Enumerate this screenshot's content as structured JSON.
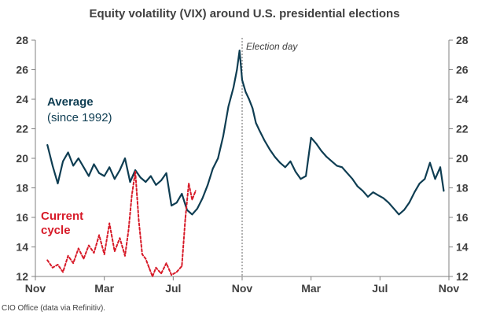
{
  "chart_data": {
    "type": "line",
    "title": "Equity volatility (VIX) around U.S. presidential elections",
    "xlabel": "",
    "ylabel": "",
    "x_tick_labels": [
      "Nov",
      "Mar",
      "Jul",
      "Nov",
      "Mar",
      "Jul",
      "Nov"
    ],
    "x_tick_months": [
      0,
      4,
      8,
      12,
      16,
      20,
      24
    ],
    "xlim": [
      0,
      24
    ],
    "ylim": [
      12,
      28
    ],
    "y_ticks": [
      12,
      14,
      16,
      18,
      20,
      22,
      24,
      26,
      28
    ],
    "y_axis_left": true,
    "y_axis_right": true,
    "annotation": {
      "label": "Election day",
      "x_month": 12
    },
    "series": [
      {
        "name": "Average (since 1992)",
        "label_main": "Average",
        "label_sub": "(since 1992)",
        "color": "#0e3d52",
        "style": "solid",
        "x": [
          0.7,
          1.0,
          1.3,
          1.6,
          1.9,
          2.2,
          2.5,
          2.8,
          3.1,
          3.4,
          3.7,
          4.0,
          4.3,
          4.6,
          4.9,
          5.2,
          5.5,
          5.8,
          6.1,
          6.4,
          6.7,
          7.0,
          7.3,
          7.6,
          7.9,
          8.2,
          8.5,
          8.8,
          9.1,
          9.4,
          9.7,
          10.0,
          10.3,
          10.6,
          10.9,
          11.2,
          11.5,
          11.7,
          11.85,
          12.0,
          12.2,
          12.4,
          12.6,
          12.8,
          13.0,
          13.3,
          13.6,
          13.9,
          14.2,
          14.5,
          14.8,
          15.1,
          15.4,
          15.7,
          16.0,
          16.3,
          16.6,
          16.9,
          17.2,
          17.5,
          17.8,
          18.1,
          18.4,
          18.7,
          19.0,
          19.3,
          19.6,
          19.9,
          20.2,
          20.5,
          20.8,
          21.1,
          21.4,
          21.7,
          22.0,
          22.3,
          22.6,
          22.9,
          23.2,
          23.5,
          23.7
        ],
        "y": [
          20.9,
          19.5,
          18.3,
          19.8,
          20.4,
          19.5,
          20.0,
          19.4,
          18.8,
          19.6,
          19.0,
          18.8,
          19.4,
          18.6,
          19.2,
          20.0,
          18.4,
          19.2,
          18.7,
          18.4,
          18.8,
          18.2,
          18.5,
          19.0,
          16.8,
          17.0,
          17.6,
          16.5,
          16.2,
          16.6,
          17.3,
          18.2,
          19.3,
          20.0,
          21.5,
          23.5,
          24.8,
          26.0,
          27.3,
          25.3,
          24.5,
          24.0,
          23.4,
          22.4,
          21.9,
          21.2,
          20.6,
          20.1,
          19.7,
          19.4,
          19.8,
          19.1,
          18.6,
          18.8,
          21.4,
          21.0,
          20.5,
          20.1,
          19.8,
          19.5,
          19.4,
          19.0,
          18.6,
          18.1,
          17.8,
          17.4,
          17.7,
          17.5,
          17.3,
          17.0,
          16.6,
          16.2,
          16.5,
          17.0,
          17.7,
          18.3,
          18.6,
          19.7,
          18.6,
          19.4,
          17.8
        ]
      },
      {
        "name": "Current cycle",
        "label_main": "Current",
        "label_sub": "cycle",
        "color": "#d71a28",
        "style": "dashed",
        "x": [
          0.7,
          1.0,
          1.3,
          1.6,
          1.9,
          2.2,
          2.5,
          2.8,
          3.1,
          3.4,
          3.7,
          4.0,
          4.3,
          4.6,
          4.9,
          5.2,
          5.4,
          5.6,
          5.8,
          6.0,
          6.2,
          6.4,
          6.6,
          6.8,
          7.0,
          7.3,
          7.6,
          7.9,
          8.2,
          8.5,
          8.7,
          8.9,
          9.1,
          9.3
        ],
        "y": [
          13.1,
          12.6,
          12.8,
          12.3,
          13.4,
          12.9,
          13.9,
          13.2,
          14.1,
          13.6,
          14.8,
          13.5,
          15.6,
          13.7,
          14.6,
          13.4,
          15.1,
          17.5,
          19.1,
          15.8,
          13.5,
          13.2,
          12.6,
          12.0,
          12.6,
          12.2,
          12.9,
          12.1,
          12.3,
          12.7,
          15.9,
          18.3,
          17.2,
          17.8
        ]
      }
    ]
  },
  "source": "CIO Office (data via Refinitiv)."
}
